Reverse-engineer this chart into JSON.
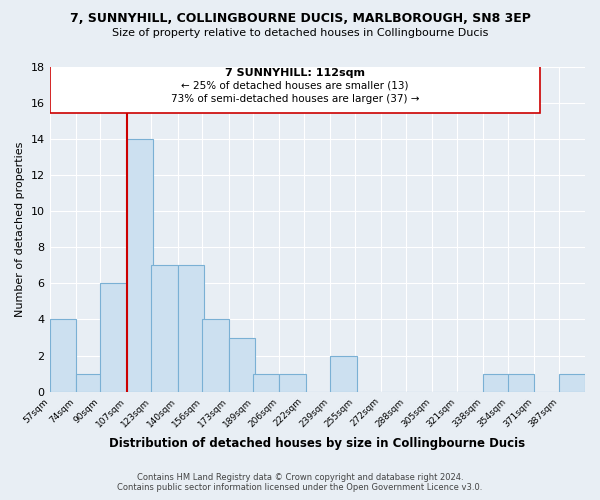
{
  "title": "7, SUNNYHILL, COLLINGBOURNE DUCIS, MARLBOROUGH, SN8 3EP",
  "subtitle": "Size of property relative to detached houses in Collingbourne Ducis",
  "xlabel": "Distribution of detached houses by size in Collingbourne Ducis",
  "ylabel": "Number of detached properties",
  "bar_color": "#cce0f0",
  "bar_edge_color": "#7ab0d4",
  "annotation_line_color": "#cc0000",
  "annotation_box_edge": "#cc0000",
  "bins": [
    57,
    74,
    90,
    107,
    123,
    140,
    156,
    173,
    189,
    206,
    222,
    239,
    255,
    272,
    288,
    305,
    321,
    338,
    354,
    371,
    387
  ],
  "bin_labels": [
    "57sqm",
    "74sqm",
    "90sqm",
    "107sqm",
    "123sqm",
    "140sqm",
    "156sqm",
    "173sqm",
    "189sqm",
    "206sqm",
    "222sqm",
    "239sqm",
    "255sqm",
    "272sqm",
    "288sqm",
    "305sqm",
    "321sqm",
    "338sqm",
    "354sqm",
    "371sqm",
    "387sqm"
  ],
  "counts": [
    4,
    1,
    6,
    14,
    7,
    7,
    4,
    3,
    1,
    1,
    0,
    2,
    0,
    0,
    0,
    0,
    0,
    1,
    1,
    0,
    1
  ],
  "ylim": [
    0,
    18
  ],
  "yticks": [
    0,
    2,
    4,
    6,
    8,
    10,
    12,
    14,
    16,
    18
  ],
  "property_bin_index": 3,
  "annotation_title": "7 SUNNYHILL: 112sqm",
  "annotation_line1": "← 25% of detached houses are smaller (13)",
  "annotation_line2": "73% of semi-detached houses are larger (37) →",
  "footer1": "Contains HM Land Registry data © Crown copyright and database right 2024.",
  "footer2": "Contains public sector information licensed under the Open Government Licence v3.0.",
  "background_color": "#e8eef4",
  "plot_bg_color": "#e8eef4",
  "grid_color": "#ffffff"
}
